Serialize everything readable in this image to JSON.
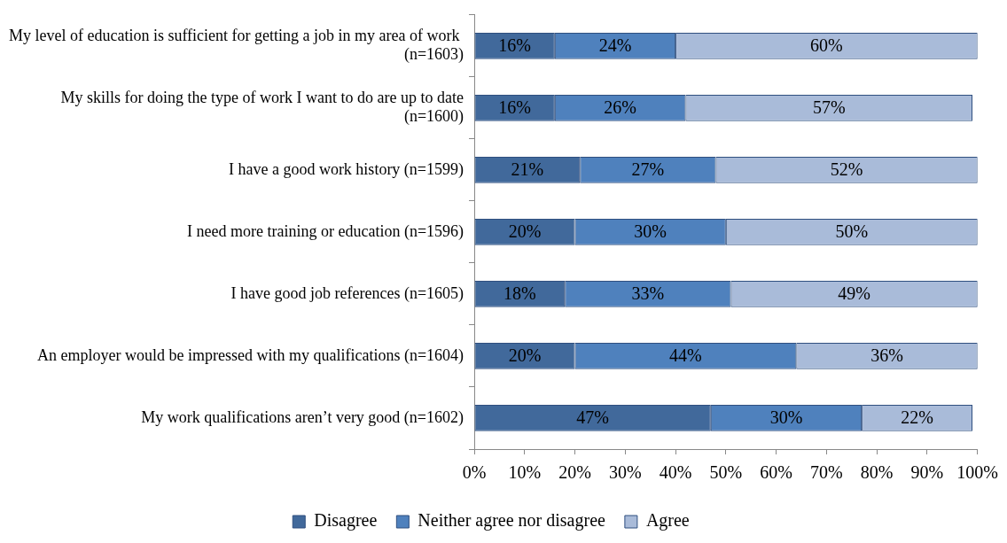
{
  "chart_data": {
    "type": "bar",
    "orientation": "horizontal",
    "stacked": true,
    "grid": false,
    "legend": "bottom",
    "categories": [
      "My level of education is sufficient for getting a job in my area of work  (n=1603)",
      "My skills for doing the type of work I want to do are up to date (n=1600)",
      "I have a good work history (n=1599)",
      "I need more training or education (n=1596)",
      "I have good job references (n=1605)",
      "An employer would be impressed with my qualifications (n=1604)",
      "My work qualifications aren’t very good (n=1602)"
    ],
    "series": [
      {
        "name": "Disagree",
        "color": "#41699b",
        "values": [
          16,
          16,
          21,
          20,
          18,
          20,
          47
        ],
        "value_labels": [
          "16%",
          "16%",
          "21%",
          "20%",
          "18%",
          "20%",
          "47%"
        ]
      },
      {
        "name": "Neither agree nor disagree",
        "color": "#4f81bd",
        "values": [
          24,
          26,
          27,
          30,
          33,
          44,
          30
        ],
        "value_labels": [
          "24%",
          "26%",
          "27%",
          "30%",
          "33%",
          "44%",
          "30%"
        ]
      },
      {
        "name": "Agree",
        "color": "#a9bbd9",
        "values": [
          60,
          57,
          52,
          50,
          49,
          36,
          22
        ],
        "value_labels": [
          "60%",
          "57%",
          "52%",
          "50%",
          "49%",
          "36%",
          "22%"
        ]
      }
    ],
    "xlim": [
      0,
      100
    ],
    "xticks": [
      {
        "value": 0,
        "label": "0%"
      },
      {
        "value": 10,
        "label": "10%"
      },
      {
        "value": 20,
        "label": "20%"
      },
      {
        "value": 30,
        "label": "30%"
      },
      {
        "value": 40,
        "label": "40%"
      },
      {
        "value": 50,
        "label": "50%"
      },
      {
        "value": 60,
        "label": "60%"
      },
      {
        "value": 70,
        "label": "70%"
      },
      {
        "value": 80,
        "label": "80%"
      },
      {
        "value": 90,
        "label": "90%"
      },
      {
        "value": 100,
        "label": "100%"
      }
    ]
  }
}
